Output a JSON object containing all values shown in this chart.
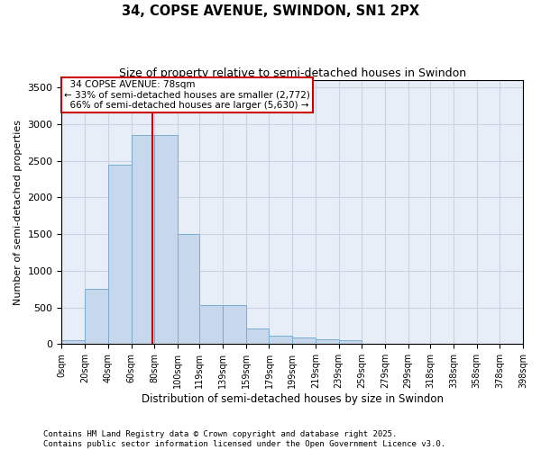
{
  "title": "34, COPSE AVENUE, SWINDON, SN1 2PX",
  "subtitle": "Size of property relative to semi-detached houses in Swindon",
  "xlabel": "Distribution of semi-detached houses by size in Swindon",
  "ylabel": "Number of semi-detached properties",
  "property_size": 78,
  "property_label": "34 COPSE AVENUE: 78sqm",
  "pct_smaller": 33,
  "pct_larger": 66,
  "n_smaller": 2772,
  "n_larger": 5630,
  "bin_labels": [
    "0sqm",
    "20sqm",
    "40sqm",
    "60sqm",
    "80sqm",
    "100sqm",
    "119sqm",
    "139sqm",
    "159sqm",
    "179sqm",
    "199sqm",
    "219sqm",
    "239sqm",
    "259sqm",
    "279sqm",
    "299sqm",
    "318sqm",
    "338sqm",
    "358sqm",
    "378sqm",
    "398sqm"
  ],
  "bin_edges": [
    0,
    20,
    40,
    60,
    80,
    100,
    119,
    139,
    159,
    179,
    199,
    219,
    239,
    259,
    279,
    299,
    318,
    338,
    358,
    378,
    398
  ],
  "bar_heights": [
    50,
    750,
    2450,
    2850,
    2850,
    1500,
    530,
    530,
    210,
    120,
    90,
    60,
    50,
    0,
    0,
    0,
    0,
    0,
    0,
    0
  ],
  "bar_color": "#c8d8ec",
  "bar_edge_color": "#7aadd4",
  "red_line_color": "#cc0000",
  "annotation_box_color": "#cc0000",
  "grid_color": "#c8d4e4",
  "background_color": "#e8eef8",
  "ylim": [
    0,
    3600
  ],
  "yticks": [
    0,
    500,
    1000,
    1500,
    2000,
    2500,
    3000,
    3500
  ],
  "footer": "Contains HM Land Registry data © Crown copyright and database right 2025.\nContains public sector information licensed under the Open Government Licence v3.0."
}
